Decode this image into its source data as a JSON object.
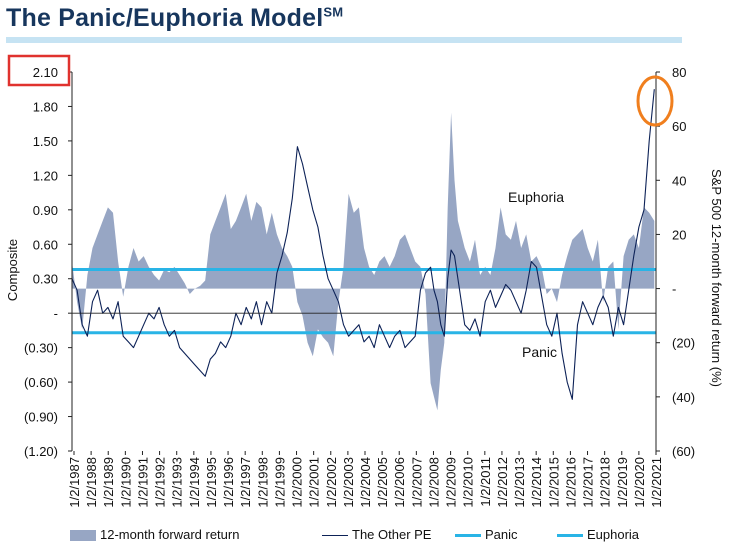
{
  "header": {
    "title": "The Panic/Euphoria Model",
    "title_sup": "SM"
  },
  "chart_data": {
    "type": "area",
    "ylabel": "Composite",
    "y2label": "S&P 500 12-month forward return (%)",
    "ylim": [
      -1.2,
      2.1
    ],
    "y2lim": [
      -60,
      80
    ],
    "yticks": [
      "2.10",
      "1.80",
      "1.50",
      "1.20",
      "0.90",
      "0.60",
      "0.30",
      "-",
      "(0.30)",
      "(0.60)",
      "(0.90)",
      "(1.20)"
    ],
    "y2ticks": [
      "80",
      "60",
      "40",
      "20",
      "-",
      "(20)",
      "(40)",
      "(60)"
    ],
    "x_ticks": [
      "1/2/1987",
      "1/2/1988",
      "1/2/1989",
      "1/2/1990",
      "1/2/1991",
      "1/2/1992",
      "1/2/1993",
      "1/2/1994",
      "1/2/1995",
      "1/2/1996",
      "1/2/1997",
      "1/2/1998",
      "1/2/1999",
      "1/2/2000",
      "1/2/2001",
      "1/2/2002",
      "1/2/2003",
      "1/2/2004",
      "1/2/2005",
      "1/2/2006",
      "1/2/2007",
      "1/2/2008",
      "1/2/2009",
      "1/2/2010",
      "1/2/2011",
      "1/2/2012",
      "1/2/2013",
      "1/2/2014",
      "1/2/2015",
      "1/2/2016",
      "1/2/2017",
      "1/2/2018",
      "1/2/2019",
      "1/2/2020",
      "1/2/2021"
    ],
    "series": [
      {
        "name": "12-month forward return",
        "axis": "right",
        "style": "area",
        "color": "#97a6c4",
        "x": [
          1987.0,
          1987.3,
          1987.6,
          1987.9,
          1988.2,
          1988.5,
          1988.8,
          1989.1,
          1989.4,
          1989.7,
          1990.0,
          1990.3,
          1990.6,
          1990.9,
          1991.2,
          1991.5,
          1991.8,
          1992.1,
          1992.4,
          1992.7,
          1993.0,
          1993.3,
          1993.6,
          1993.9,
          1994.2,
          1994.5,
          1994.8,
          1995.1,
          1995.4,
          1995.7,
          1996.0,
          1996.3,
          1996.6,
          1996.9,
          1997.2,
          1997.5,
          1997.8,
          1998.1,
          1998.4,
          1998.7,
          1999.0,
          1999.3,
          1999.6,
          1999.9,
          2000.2,
          2000.5,
          2000.8,
          2001.1,
          2001.4,
          2001.7,
          2002.0,
          2002.3,
          2002.6,
          2002.9,
          2003.2,
          2003.5,
          2003.8,
          2004.1,
          2004.4,
          2004.7,
          2005.0,
          2005.3,
          2005.6,
          2005.9,
          2006.2,
          2006.5,
          2006.8,
          2007.1,
          2007.4,
          2007.7,
          2008.0,
          2008.2,
          2008.4,
          2008.6,
          2008.8,
          2009.0,
          2009.2,
          2009.4,
          2009.6,
          2009.8,
          2010.0,
          2010.3,
          2010.6,
          2010.9,
          2011.2,
          2011.5,
          2011.8,
          2012.1,
          2012.4,
          2012.7,
          2013.0,
          2013.3,
          2013.6,
          2013.9,
          2014.2,
          2014.5,
          2014.8,
          2015.1,
          2015.4,
          2015.7,
          2016.0,
          2016.3,
          2016.6,
          2016.9,
          2017.2,
          2017.5,
          2017.8,
          2018.1,
          2018.4,
          2018.7,
          2019.0,
          2019.3,
          2019.6,
          2019.9,
          2020.2,
          2020.5,
          2020.8,
          2021.1
        ],
        "values": [
          10,
          -5,
          -15,
          5,
          15,
          20,
          25,
          30,
          28,
          10,
          -3,
          8,
          15,
          10,
          12,
          8,
          5,
          3,
          7,
          6,
          8,
          5,
          2,
          -2,
          0,
          1,
          3,
          20,
          25,
          30,
          35,
          22,
          25,
          30,
          35,
          25,
          32,
          30,
          20,
          28,
          20,
          15,
          12,
          8,
          -5,
          -10,
          -20,
          -25,
          -15,
          -18,
          -20,
          -25,
          -5,
          8,
          35,
          28,
          30,
          15,
          8,
          5,
          10,
          12,
          8,
          12,
          18,
          20,
          15,
          10,
          8,
          -2,
          -35,
          -40,
          -45,
          -30,
          -20,
          30,
          65,
          40,
          25,
          20,
          15,
          10,
          18,
          5,
          8,
          5,
          15,
          30,
          20,
          18,
          25,
          15,
          20,
          10,
          12,
          8,
          -2,
          0,
          -5,
          5,
          12,
          18,
          20,
          22,
          15,
          10,
          18,
          -5,
          8,
          10,
          -15,
          12,
          18,
          20,
          15,
          30,
          28,
          25
        ]
      },
      {
        "name": "The Other PE",
        "axis": "left",
        "style": "line",
        "color": "#0d2257",
        "x": [
          1987.0,
          1987.3,
          1987.6,
          1987.9,
          1988.2,
          1988.5,
          1988.8,
          1989.1,
          1989.4,
          1989.7,
          1990.0,
          1990.3,
          1990.6,
          1990.9,
          1991.2,
          1991.5,
          1991.8,
          1992.1,
          1992.4,
          1992.7,
          1993.0,
          1993.3,
          1993.6,
          1993.9,
          1994.2,
          1994.5,
          1994.8,
          1995.1,
          1995.4,
          1995.7,
          1996.0,
          1996.3,
          1996.6,
          1996.9,
          1997.2,
          1997.5,
          1997.8,
          1998.1,
          1998.4,
          1998.7,
          1999.0,
          1999.3,
          1999.6,
          1999.9,
          2000.2,
          2000.5,
          2000.8,
          2001.1,
          2001.4,
          2001.7,
          2002.0,
          2002.3,
          2002.6,
          2002.9,
          2003.2,
          2003.5,
          2003.8,
          2004.1,
          2004.4,
          2004.7,
          2005.0,
          2005.3,
          2005.6,
          2005.9,
          2006.2,
          2006.5,
          2006.8,
          2007.1,
          2007.4,
          2007.7,
          2008.0,
          2008.2,
          2008.4,
          2008.6,
          2008.8,
          2009.0,
          2009.2,
          2009.4,
          2009.6,
          2009.8,
          2010.0,
          2010.3,
          2010.6,
          2010.9,
          2011.2,
          2011.5,
          2011.8,
          2012.1,
          2012.4,
          2012.7,
          2013.0,
          2013.3,
          2013.6,
          2013.9,
          2014.2,
          2014.5,
          2014.8,
          2015.1,
          2015.4,
          2015.7,
          2016.0,
          2016.3,
          2016.6,
          2016.9,
          2017.2,
          2017.5,
          2017.8,
          2018.1,
          2018.4,
          2018.7,
          2019.0,
          2019.3,
          2019.6,
          2019.9,
          2020.2,
          2020.5,
          2020.8,
          2021.1
        ],
        "values": [
          0.3,
          0.2,
          -0.1,
          -0.2,
          0.1,
          0.2,
          0.0,
          0.05,
          -0.05,
          0.1,
          -0.2,
          -0.25,
          -0.3,
          -0.2,
          -0.1,
          0.0,
          -0.05,
          0.05,
          -0.1,
          -0.2,
          -0.15,
          -0.3,
          -0.35,
          -0.4,
          -0.45,
          -0.5,
          -0.55,
          -0.4,
          -0.35,
          -0.25,
          -0.3,
          -0.2,
          0.0,
          -0.1,
          0.05,
          -0.05,
          0.1,
          -0.1,
          0.1,
          0.0,
          0.35,
          0.5,
          0.7,
          1.0,
          1.45,
          1.3,
          1.1,
          0.9,
          0.75,
          0.5,
          0.3,
          0.2,
          0.1,
          -0.1,
          -0.2,
          -0.15,
          -0.1,
          -0.25,
          -0.2,
          -0.3,
          -0.1,
          -0.2,
          -0.3,
          -0.2,
          -0.15,
          -0.3,
          -0.25,
          -0.2,
          0.2,
          0.35,
          0.4,
          0.2,
          0.1,
          -0.1,
          -0.2,
          0.3,
          0.55,
          0.5,
          0.3,
          0.1,
          -0.1,
          -0.15,
          -0.05,
          -0.2,
          0.1,
          0.2,
          0.05,
          0.15,
          0.25,
          0.2,
          0.1,
          0.0,
          0.2,
          0.45,
          0.4,
          0.15,
          -0.1,
          -0.2,
          0.0,
          -0.35,
          -0.6,
          -0.75,
          -0.1,
          0.1,
          0.0,
          -0.1,
          0.05,
          0.15,
          0.05,
          -0.2,
          0.05,
          -0.1,
          0.2,
          0.5,
          0.75,
          0.9,
          1.5,
          1.95
        ]
      },
      {
        "name": "Panic",
        "axis": "left",
        "style": "hline",
        "value": -0.17,
        "color": "#29b4e6"
      },
      {
        "name": "Euphoria",
        "axis": "left",
        "style": "hline",
        "value": 0.38,
        "color": "#29b4e6"
      }
    ],
    "annotations": [
      {
        "text": "Euphoria"
      },
      {
        "text": "Panic"
      }
    ],
    "legend_position": "bottom",
    "grid": false
  }
}
